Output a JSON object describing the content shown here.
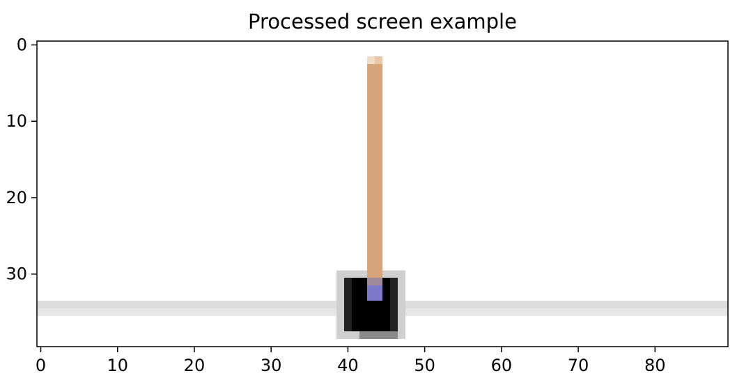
{
  "chart_data": {
    "type": "heatmap",
    "title": "Processed screen example",
    "xlabel": "",
    "ylabel": "",
    "xlim": [
      -0.5,
      89.5
    ],
    "ylim": [
      39.5,
      -0.5
    ],
    "x_ticks": [
      0,
      10,
      20,
      30,
      40,
      50,
      60,
      70,
      80
    ],
    "y_ticks": [
      0,
      10,
      20,
      30
    ],
    "grid": false,
    "image": {
      "width": 90,
      "height": 40,
      "background": "#ffffff",
      "cells": [
        {
          "x0": 0,
          "x1": 89,
          "y0": 34,
          "y1": 34,
          "color": "#dcdcdc"
        },
        {
          "x0": 0,
          "x1": 89,
          "y0": 35,
          "y1": 35,
          "color": "#e6e6e6"
        },
        {
          "x0": 39,
          "x1": 47,
          "y0": 30,
          "y1": 38,
          "color": "#cfcfcf"
        },
        {
          "x0": 40,
          "x1": 46,
          "y0": 31,
          "y1": 37,
          "color": "#000000"
        },
        {
          "x0": 40,
          "x1": 40,
          "y0": 31,
          "y1": 37,
          "color": "#222222"
        },
        {
          "x0": 46,
          "x1": 46,
          "y0": 31,
          "y1": 37,
          "color": "#222222"
        },
        {
          "x0": 42,
          "x1": 46,
          "y0": 38,
          "y1": 38,
          "color": "#8a8a8a"
        },
        {
          "x0": 43,
          "x1": 43,
          "y0": 2,
          "y1": 33,
          "color": "#f0ddc8"
        },
        {
          "x0": 44,
          "x1": 44,
          "y0": 2,
          "y1": 33,
          "color": "#e8c8a8"
        },
        {
          "x0": 43,
          "x1": 44,
          "y0": 3,
          "y1": 30,
          "color": "#d6a47a"
        },
        {
          "x0": 43,
          "x1": 44,
          "y0": 31,
          "y1": 31,
          "color": "#a08a9a"
        },
        {
          "x0": 43,
          "x1": 44,
          "y0": 32,
          "y1": 33,
          "color": "#7a7ac8"
        }
      ]
    }
  }
}
